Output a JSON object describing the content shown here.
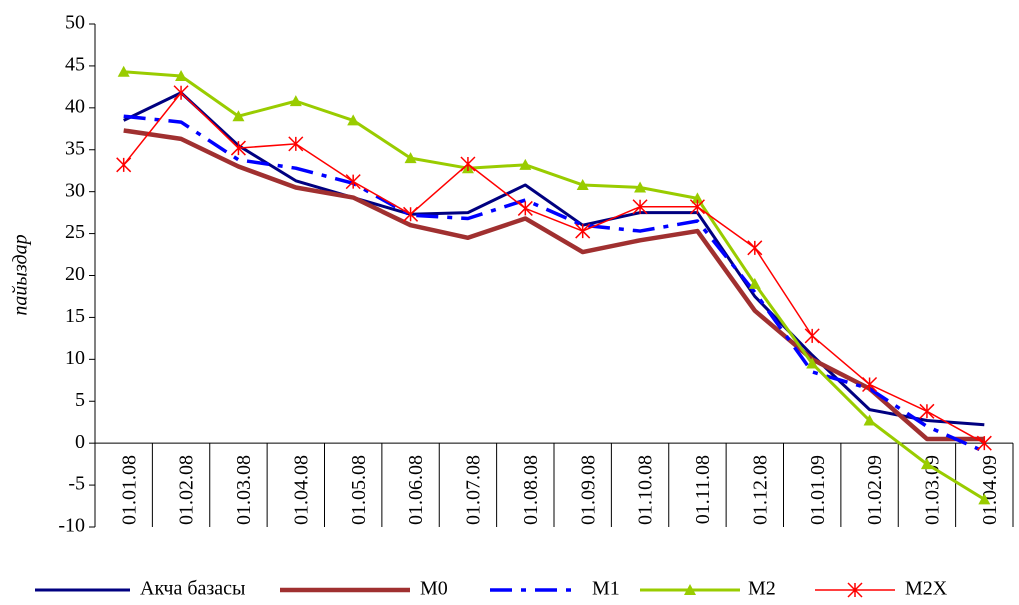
{
  "chart_data": {
    "type": "line",
    "y_label": "пайыздар",
    "categories": [
      "01.01.08",
      "01.02.08",
      "01.03.08",
      "01.04.08",
      "01.05.08",
      "01.06.08",
      "01.07.08",
      "01.08.08",
      "01.09.08",
      "01.10.08",
      "01.11.08",
      "01.12.08",
      "01.01.09",
      "01.02.09",
      "01.03.09",
      "01.04.09"
    ],
    "series": [
      {
        "name": "Акча базасы",
        "color": "#000080",
        "style": "solid",
        "marker": "none",
        "values": [
          38.5,
          41.8,
          35.5,
          31.3,
          29.3,
          27.3,
          27.5,
          30.8,
          26.0,
          27.5,
          27.5,
          17.5,
          10.5,
          4.0,
          2.7,
          2.2
        ]
      },
      {
        "name": "M0",
        "color": "#a03030",
        "style": "thick",
        "marker": "none",
        "values": [
          37.3,
          36.3,
          33.0,
          30.5,
          29.3,
          26.0,
          24.5,
          26.8,
          22.8,
          24.2,
          25.3,
          15.8,
          10.0,
          6.5,
          0.5,
          0.5
        ]
      },
      {
        "name": "M1",
        "color": "#0000ff",
        "style": "dash",
        "marker": "none",
        "values": [
          39.0,
          38.3,
          33.8,
          32.8,
          31.0,
          27.2,
          26.8,
          29.0,
          26.0,
          25.3,
          26.5,
          18.0,
          8.5,
          6.5,
          2.0,
          -1.0
        ]
      },
      {
        "name": "M2",
        "color": "#99cc00",
        "style": "solid",
        "marker": "triangle",
        "values": [
          44.3,
          43.8,
          39.0,
          40.8,
          38.5,
          34.0,
          32.8,
          33.2,
          30.8,
          30.5,
          29.2,
          19.0,
          9.5,
          2.7,
          -2.5,
          -6.7
        ]
      },
      {
        "name": "M2X",
        "color": "#ff0000",
        "style": "thin",
        "marker": "star",
        "values": [
          33.2,
          41.8,
          35.2,
          35.7,
          31.2,
          27.3,
          33.3,
          28.0,
          25.3,
          28.2,
          28.2,
          23.3,
          12.8,
          7.0,
          3.8,
          0.0
        ]
      }
    ],
    "ylim": [
      -10,
      50
    ],
    "yticks": [
      -10,
      -5,
      0,
      5,
      10,
      15,
      20,
      25,
      30,
      35,
      40,
      45,
      50
    ],
    "legend": "bottom"
  }
}
